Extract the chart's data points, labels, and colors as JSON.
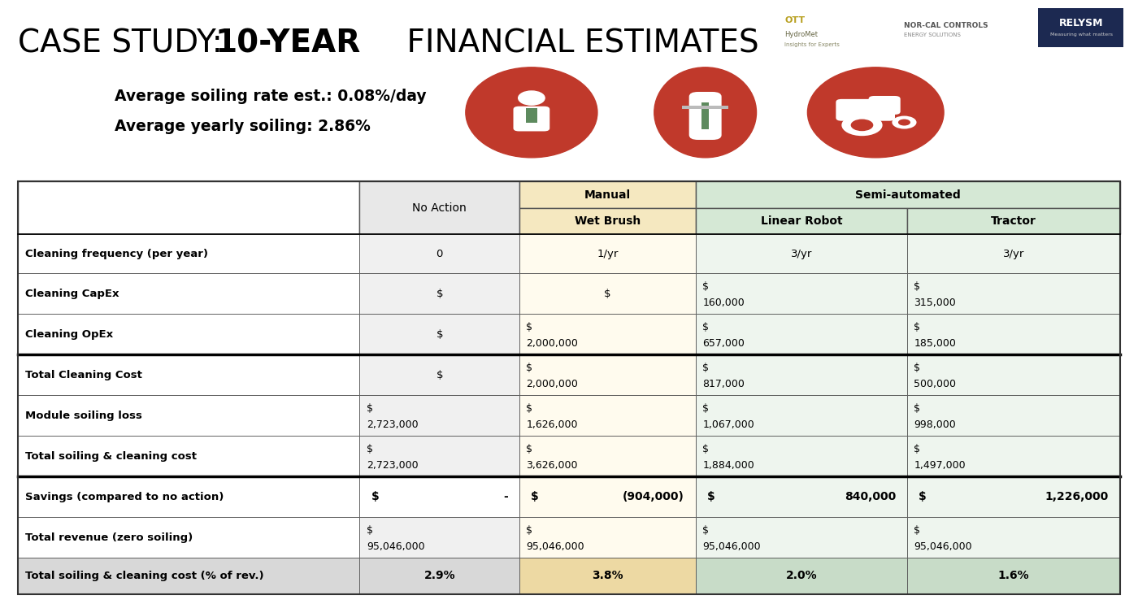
{
  "title_part1": "CASE STUDY: ",
  "title_part2": "10-YEAR",
  "title_part3": " FINANCIAL ESTIMATES",
  "subtitle1": "Average soiling rate est.: 0.08%/day",
  "subtitle2": "Average yearly soiling: 2.86%",
  "bg_color": "#FFFFFF",
  "icon_color": "#C0392B",
  "icon_inner_color": "#E8D5B7",
  "green_icon_color": "#5D8A5E",
  "rows": [
    [
      "Cleaning frequency (per year)",
      "0",
      "1/yr",
      "3/yr",
      "3/yr"
    ],
    [
      "Cleaning CapEx",
      "$",
      "$",
      "$\n160,000",
      "$\n315,000"
    ],
    [
      "Cleaning OpEx",
      "$",
      "$\n2,000,000",
      "$\n657,000",
      "$\n185,000"
    ],
    [
      "Total Cleaning Cost",
      "$",
      "$\n2,000,000",
      "$\n817,000",
      "$\n500,000"
    ],
    [
      "Module soiling loss",
      "$\n2,723,000",
      "$\n1,626,000",
      "$\n1,067,000",
      "$\n998,000"
    ],
    [
      "Total soiling & cleaning cost",
      "$\n2,723,000",
      "$\n3,626,000",
      "$\n1,884,000",
      "$\n1,497,000"
    ],
    [
      "Savings (compared to no action)",
      "$         -",
      "$      (904,000)",
      "$       840,000",
      "$    1,226,000"
    ],
    [
      "Total revenue (zero soiling)",
      "$\n95,046,000",
      "$\n95,046,000",
      "$\n95,046,000",
      "$\n95,046,000"
    ],
    [
      "Total soiling & cleaning cost (% of rev.)",
      "2.9%",
      "3.8%",
      "2.0%",
      "1.6%"
    ]
  ],
  "col_bg_label": "#FFFFFF",
  "col_bg_no_action": "#F0F0F0",
  "col_bg_wet_brush": "#FFFBEE",
  "col_bg_linear": "#EEF5EE",
  "col_bg_tractor": "#EEF5EE",
  "hdr1_label_bg": "#FFFFFF",
  "hdr1_no_action_bg": "#E8E8E8",
  "hdr1_manual_bg": "#F5E8C0",
  "hdr1_semi_bg": "#D5E8D5",
  "hdr2_no_action_bg": "#E8E8E8",
  "hdr2_wet_brush_bg": "#F5E8C0",
  "hdr2_linear_bg": "#D5E8D5",
  "hdr2_tractor_bg": "#D5E8D5",
  "savings_bg_label": "#FFFFFF",
  "savings_bg_no_action": "#FFFFFF",
  "savings_bg_wet_brush": "#FFFBEE",
  "savings_bg_linear": "#EEF5EE",
  "savings_bg_tractor": "#EEF5EE",
  "last_row_bg_label": "#D8D8D8",
  "last_row_bg_no_action": "#D8D8D8",
  "last_row_bg_wet_brush": "#EDD9A3",
  "last_row_bg_linear": "#C8DCC8",
  "last_row_bg_tractor": "#C8DCC8"
}
